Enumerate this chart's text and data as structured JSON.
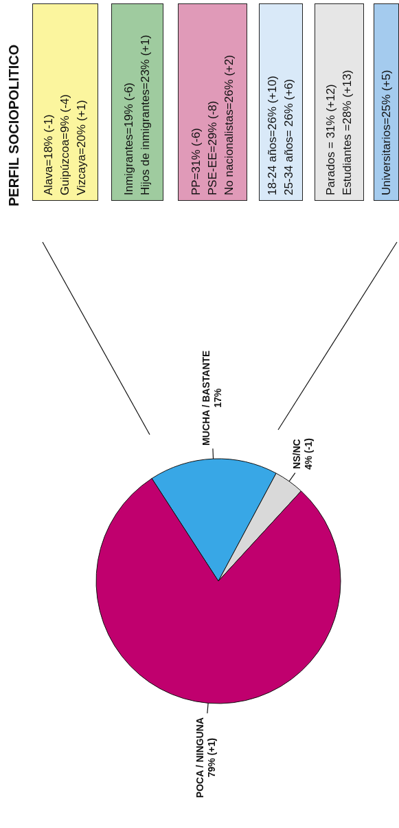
{
  "chart_data": {
    "type": "pie",
    "title": "PERFIL SOCIOPOLITICO",
    "categories": [
      "MUCHA / BASTANTE",
      "NS/NC",
      "POCA / NINGUNA"
    ],
    "values": [
      17,
      4,
      79
    ],
    "colors": [
      "#38a7e6",
      "#d9d9d9",
      "#c0006e"
    ],
    "value_labels": [
      "17%",
      "4% (-1)",
      "79% (+1)"
    ],
    "annotations": [
      "Alava=18% (-1)\nGuipúzcoa=9% (-4)\nVizcaya=20% (+1)",
      "Inmigrantes=19% (-6)\nHijos de inmigrantes=23% (+1)",
      "PP=31% (-6)\nPSE-EE=29% (-8)\nNo nacionalistas=26% (+2)",
      "18-24 años=26% (+10)\n25-34 años= 26% (+6)",
      "Parados = 31% (+12)\nEstudiantes =28% (+13)",
      "Universitarios=25% (+5)"
    ]
  }
}
